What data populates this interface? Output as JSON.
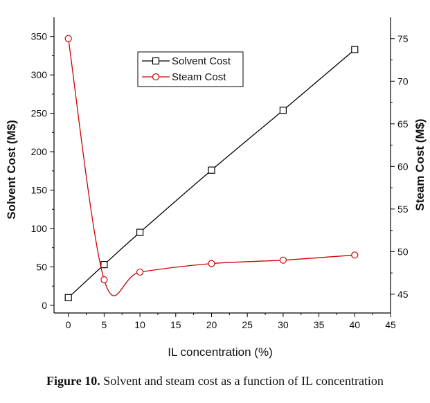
{
  "caption": {
    "label": "Figure 10.",
    "text": "Solvent and steam cost as a function of IL concentration"
  },
  "chart_data": {
    "type": "line",
    "xlabel": "IL concentration (%)",
    "ylabel_left": "Solvent Cost (M$)",
    "ylabel_right": "Steam Cost (M$)",
    "xlim": [
      -2,
      45
    ],
    "ylim_left": [
      -10,
      375
    ],
    "ylim_right": [
      42.8,
      77.5
    ],
    "x_ticks": [
      0,
      5,
      10,
      15,
      20,
      25,
      30,
      35,
      40,
      45
    ],
    "y_left_ticks": [
      0,
      50,
      100,
      150,
      200,
      250,
      300,
      350
    ],
    "y_right_ticks": [
      45,
      50,
      55,
      60,
      65,
      70,
      75
    ],
    "legend_position": "top-center",
    "grid": false,
    "series": [
      {
        "name": "Solvent Cost",
        "axis": "left",
        "color": "#000000",
        "marker": "square",
        "x": [
          0,
          5,
          10,
          20,
          30,
          40
        ],
        "y": [
          10,
          53,
          95,
          176,
          254,
          333
        ]
      },
      {
        "name": "Steam Cost",
        "axis": "right",
        "color": "#cc0000",
        "marker": "circle",
        "x": [
          0,
          5,
          10,
          20,
          30,
          40
        ],
        "y": [
          75.0,
          46.7,
          47.6,
          48.6,
          49.0,
          49.6
        ]
      }
    ]
  }
}
